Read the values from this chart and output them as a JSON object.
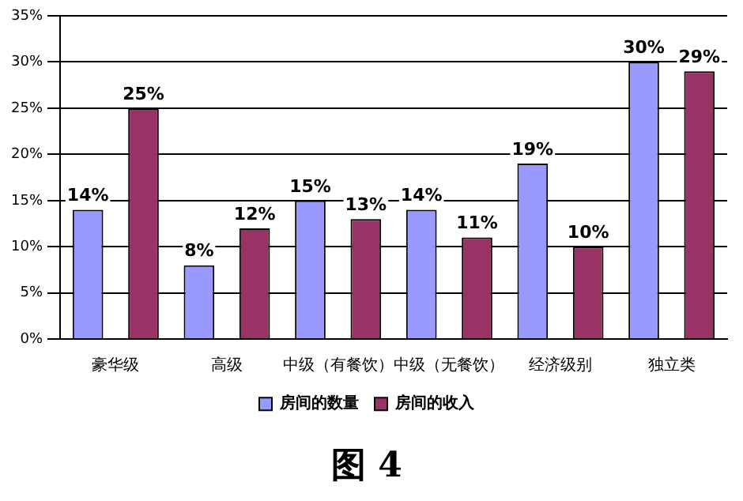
{
  "chart_data": {
    "type": "bar",
    "title": "图 4",
    "categories": [
      "豪华级",
      "高级",
      "中级（有餐饮）",
      "中级（无餐饮）",
      "经济级别",
      "独立类"
    ],
    "series": [
      {
        "name": "房间的数量",
        "color": "#9999ff",
        "values": [
          14,
          8,
          15,
          14,
          19,
          30
        ],
        "value_labels": [
          "14%",
          "8%",
          "15%",
          "14%",
          "19%",
          "30%"
        ]
      },
      {
        "name": "房间的收入",
        "color": "#993366",
        "values": [
          25,
          12,
          13,
          11,
          10,
          29
        ],
        "value_labels": [
          "25%",
          "12%",
          "13%",
          "11%",
          "10%",
          "29%"
        ]
      }
    ],
    "ylim": [
      0,
      35
    ],
    "yticks": [
      {
        "value": 0,
        "label": "0%"
      },
      {
        "value": 5,
        "label": "5%"
      },
      {
        "value": 10,
        "label": "10%"
      },
      {
        "value": 15,
        "label": "15%"
      },
      {
        "value": 20,
        "label": "20%"
      },
      {
        "value": 25,
        "label": "25%"
      },
      {
        "value": 30,
        "label": "30%"
      },
      {
        "value": 35,
        "label": "35%"
      }
    ],
    "grid": "y",
    "legend": "bottom"
  }
}
